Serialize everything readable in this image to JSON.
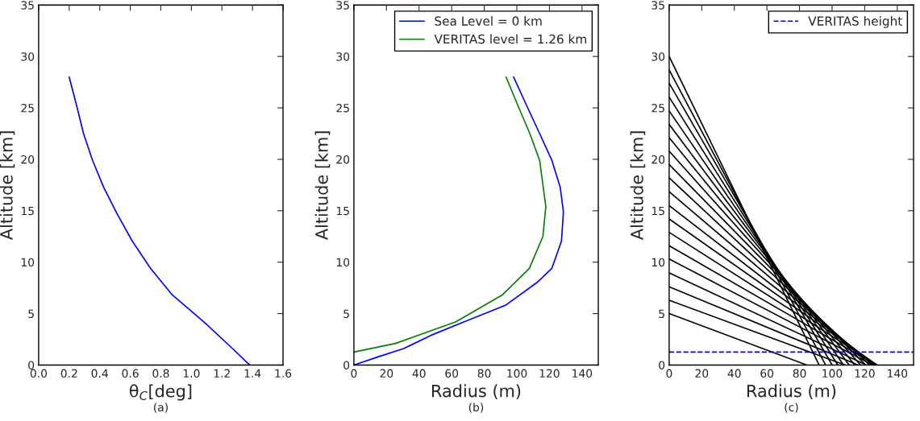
{
  "chart_data": [
    {
      "type": "line",
      "xlabel": "θ$_{C}$[deg]",
      "ylabel": "Altitude [km]",
      "annotations": [
        "(a)"
      ],
      "xlim": [
        0,
        1.6
      ],
      "xticks": [
        {
          "value": 0,
          "label": "0.0"
        },
        0.2,
        0.4,
        0.6,
        0.8,
        {
          "value": 1,
          "label": "1.0"
        },
        1.2,
        1.4,
        1.6
      ],
      "ylim": [
        0,
        35
      ],
      "yticks": [
        0,
        5,
        10,
        15,
        20,
        25,
        30,
        35
      ],
      "grid": false,
      "legend": false,
      "series": [
        {
          "color": "#0000ff",
          "x": [
            0.2,
            0.251,
            0.294,
            0.353,
            0.425,
            0.515,
            0.613,
            0.73,
            0.874,
            1.08,
            1.268,
            1.381
          ],
          "values": [
            28,
            25.1,
            22.5,
            19.9,
            17.3,
            14.66,
            12.05,
            9.44,
            6.83,
            4.22,
            1.62,
            0
          ]
        }
      ]
    },
    {
      "type": "line",
      "xlabel": "Radius (m)",
      "ylabel": "Altitude [km]",
      "annotations": [
        "(b)"
      ],
      "xlim": [
        0,
        150
      ],
      "xticks": [
        0,
        20,
        40,
        60,
        80,
        100,
        120,
        140
      ],
      "ylim": [
        0,
        35
      ],
      "yticks": [
        0,
        5,
        10,
        15,
        20,
        25,
        30,
        35
      ],
      "grid": false,
      "legend": "top right",
      "series": [
        {
          "name": "Sea Level = 0 km",
          "color": "#0000ff",
          "x": [
            98,
            106.4,
            114,
            121.5,
            126.6,
            128.6,
            127.4,
            121.5,
            113,
            93,
            67.7,
            47.5,
            30.6,
            15.5,
            0
          ],
          "values": [
            28,
            25.1,
            22.5,
            19.9,
            17.3,
            14.9,
            12.05,
            9.4,
            8.1,
            5.8,
            4.2,
            2.9,
            1.6,
            0.83,
            0
          ]
        },
        {
          "name": "VERITAS level = 1.26 km",
          "color": "#008000",
          "x": [
            93.4,
            101,
            108,
            114,
            117.8,
            116,
            107.7,
            91,
            62.6,
            25.6,
            0
          ],
          "values": [
            28,
            25.1,
            22.5,
            19.9,
            15.4,
            12.5,
            9.4,
            6.8,
            4.2,
            2.1,
            1.26
          ]
        }
      ]
    },
    {
      "type": "line",
      "xlabel": "Radius (m)",
      "ylabel": "Altitude [km]",
      "annotations": [
        "(c)"
      ],
      "xlim": [
        0,
        150
      ],
      "xticks": [
        0,
        20,
        40,
        60,
        80,
        100,
        120,
        140
      ],
      "ylim": [
        0,
        35
      ],
      "yticks": [
        0,
        5,
        10,
        15,
        20,
        25,
        30,
        35
      ],
      "grid": false,
      "legend": "top right",
      "ref_lines": [
        {
          "axis": "y",
          "value": 1.26,
          "label": "VERITAS height",
          "color": "#0000ff",
          "line_style": "dashed"
        }
      ],
      "series": [
        {
          "color": "#000000",
          "x": [
            0,
            92
          ],
          "values": [
            30,
            0
          ]
        },
        {
          "color": "#000000",
          "x": [
            0,
            96
          ],
          "values": [
            28.7,
            0
          ]
        },
        {
          "color": "#000000",
          "x": [
            0,
            100
          ],
          "values": [
            27.4,
            0
          ]
        },
        {
          "color": "#000000",
          "x": [
            0,
            103.5
          ],
          "values": [
            26.05,
            0
          ]
        },
        {
          "color": "#000000",
          "x": [
            0,
            107
          ],
          "values": [
            24.7,
            0
          ]
        },
        {
          "color": "#000000",
          "x": [
            0,
            110.5
          ],
          "values": [
            23.4,
            0
          ]
        },
        {
          "color": "#000000",
          "x": [
            0,
            114
          ],
          "values": [
            22.1,
            0
          ]
        },
        {
          "color": "#000000",
          "x": [
            0,
            117.5
          ],
          "values": [
            20.8,
            0
          ]
        },
        {
          "color": "#000000",
          "x": [
            0,
            120.5
          ],
          "values": [
            19.5,
            0
          ]
        },
        {
          "color": "#000000",
          "x": [
            0,
            123
          ],
          "values": [
            18.2,
            0
          ]
        },
        {
          "color": "#000000",
          "x": [
            0,
            125
          ],
          "values": [
            16.85,
            0
          ]
        },
        {
          "color": "#000000",
          "x": [
            0,
            126.5
          ],
          "values": [
            15.5,
            0
          ]
        },
        {
          "color": "#000000",
          "x": [
            0,
            127.5
          ],
          "values": [
            14.2,
            0
          ]
        },
        {
          "color": "#000000",
          "x": [
            0,
            127.7
          ],
          "values": [
            12.9,
            0
          ]
        },
        {
          "color": "#000000",
          "x": [
            0,
            127
          ],
          "values": [
            11.6,
            0
          ]
        },
        {
          "color": "#000000",
          "x": [
            0,
            125
          ],
          "values": [
            10.3,
            0
          ]
        },
        {
          "color": "#000000",
          "x": [
            0,
            121
          ],
          "values": [
            8.95,
            0
          ]
        },
        {
          "color": "#000000",
          "x": [
            0,
            116
          ],
          "values": [
            7.6,
            0
          ]
        },
        {
          "color": "#000000",
          "x": [
            0,
            108
          ],
          "values": [
            6.3,
            0
          ]
        },
        {
          "color": "#000000",
          "x": [
            0,
            84.5
          ],
          "values": [
            5,
            0
          ]
        }
      ]
    }
  ]
}
